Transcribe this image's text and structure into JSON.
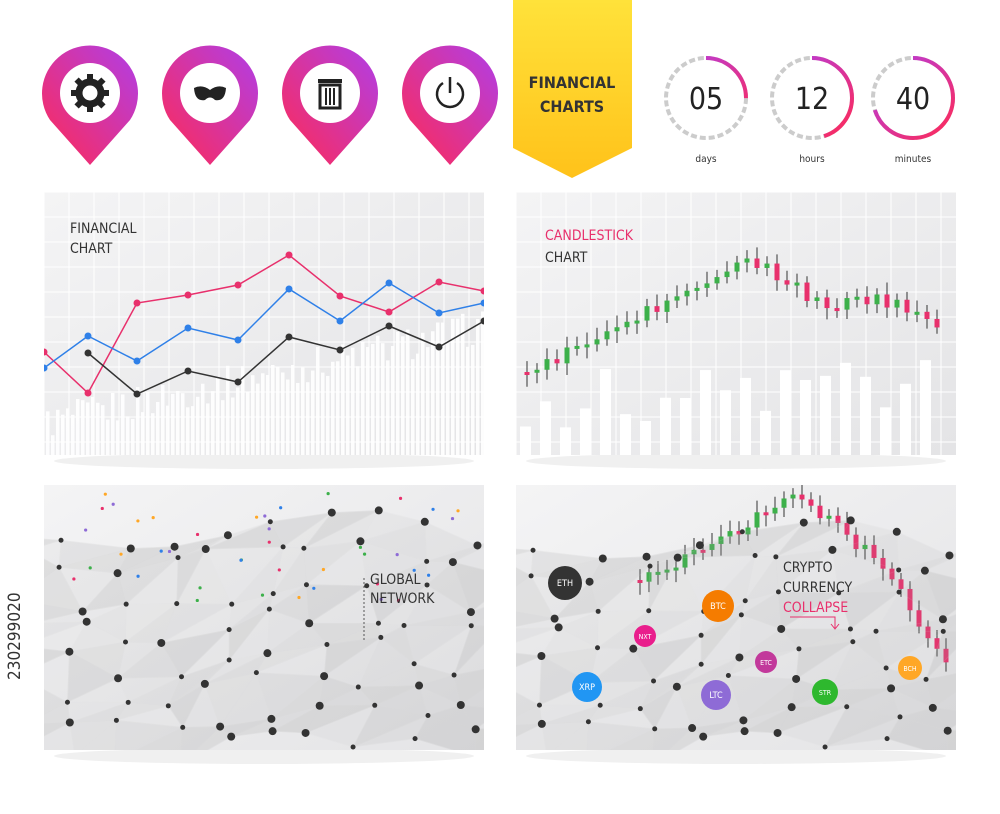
{
  "ribbon": {
    "title": [
      "FINANCIAL",
      "CHARTS"
    ]
  },
  "timer": [
    {
      "value": "05",
      "unit": "days"
    },
    {
      "value": "12",
      "unit": "hours"
    },
    {
      "value": "40",
      "unit": "minutes"
    }
  ],
  "panels": {
    "financial_chart": [
      "FINANCIAL",
      "CHART"
    ],
    "candlestick_chart": [
      "CANDLESTICK",
      "CHART"
    ],
    "global_network": [
      "GLOBAL",
      "NETWORK"
    ],
    "crypto": [
      "CRYPTO",
      "CURRENCY",
      "COLLAPSE"
    ],
    "coins": [
      "ETH",
      "NXT",
      "BTC",
      "XRP",
      "LTC",
      "ETC",
      "STR",
      "BCH"
    ]
  },
  "watermark": "230299020"
}
